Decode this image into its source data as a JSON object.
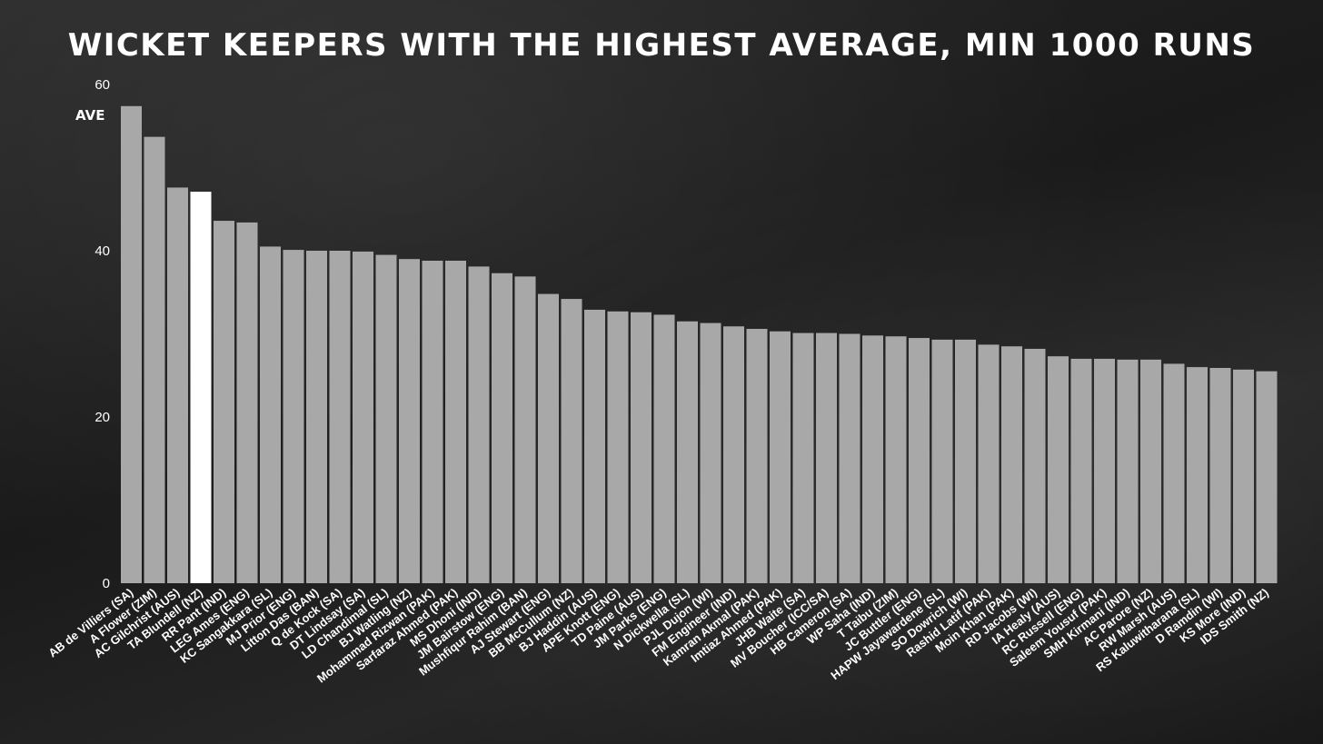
{
  "chart_data": {
    "type": "bar",
    "title": "Wicket keepers with the highest average, min 1000 runs",
    "xlabel": "",
    "ylabel": "AVE",
    "ylim": [
      0,
      60
    ],
    "yticks": [
      0,
      20,
      40,
      60
    ],
    "grid": false,
    "categories": [
      "AB de Villiers (SA)",
      "A Flower (ZIM)",
      "AC Gilchrist (AUS)",
      "TA Blundell (NZ)",
      "RR Pant (IND)",
      "LEG Ames (ENG)",
      "KC Sangakkara (SL)",
      "MJ Prior (ENG)",
      "Litton Das (BAN)",
      "Q de Kock (SA)",
      "DT Lindsay (SA)",
      "LD Chandimal (SL)",
      "BJ Watling (NZ)",
      "Mohammad Rizwan (PAK)",
      "Sarfaraz Ahmed (PAK)",
      "MS Dhoni (IND)",
      "JM Bairstow (ENG)",
      "Mushfiqur Rahim (BAN)",
      "AJ Stewart (ENG)",
      "BB McCullum (NZ)",
      "BJ Haddin (AUS)",
      "APE Knott (ENG)",
      "TD Paine (AUS)",
      "JM Parks (ENG)",
      "N Dickwella (SL)",
      "PJL Dujon (WI)",
      "FM Engineer (IND)",
      "Kamran Akmal (PAK)",
      "Imtiaz Ahmed (PAK)",
      "JHB Waite (SA)",
      "MV Boucher (ICC/SA)",
      "HB Cameron (SA)",
      "WP Saha (IND)",
      "T Taibu (ZIM)",
      "JC Buttler (ENG)",
      "HAPW Jayawardene (SL)",
      "SO Dowrich (WI)",
      "Rashid Latif (PAK)",
      "Moin Khan (PAK)",
      "RD Jacobs (WI)",
      "IA Healy (AUS)",
      "RC Russell (ENG)",
      "Saleem Yousuf (PAK)",
      "SMH Kirmani (IND)",
      "AC Parore (NZ)",
      "RW Marsh (AUS)",
      "RS Kaluwitharana (SL)",
      "D Ramdin (WI)",
      "KS More (IND)",
      "IDS Smith (NZ)"
    ],
    "values": [
      57.4,
      53.7,
      47.6,
      47.1,
      43.6,
      43.4,
      40.5,
      40.1,
      40.0,
      40.0,
      39.9,
      39.5,
      39.0,
      38.8,
      38.8,
      38.1,
      37.3,
      36.9,
      34.8,
      34.2,
      32.9,
      32.7,
      32.6,
      32.3,
      31.5,
      31.3,
      30.9,
      30.6,
      30.3,
      30.1,
      30.1,
      30.0,
      29.8,
      29.7,
      29.5,
      29.3,
      29.3,
      28.7,
      28.5,
      28.2,
      27.3,
      27.0,
      27.0,
      26.9,
      26.9,
      26.4,
      26.0,
      25.9,
      25.7,
      25.5
    ],
    "highlight_index": 3,
    "colors": {
      "bar": "#a8a8a8",
      "highlight": "#ffffff",
      "text": "#ffffff"
    }
  }
}
